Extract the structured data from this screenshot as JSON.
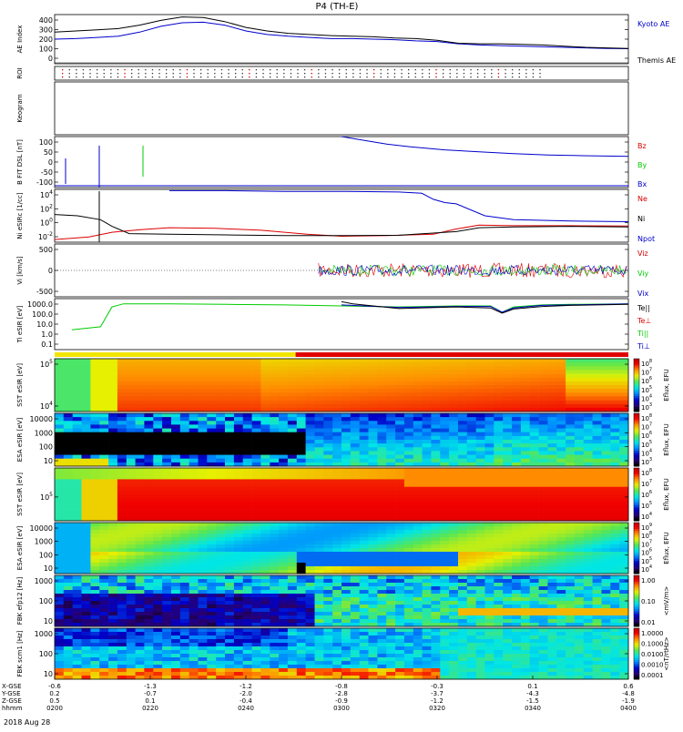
{
  "title": "P4 (TH-E)",
  "date_label": "2018 Aug 28",
  "colors": {
    "red": "#dd0000",
    "green": "#00cc00",
    "blue": "#0000cc",
    "black": "#000000"
  },
  "chart_data": {
    "type": "line",
    "time_axis": {
      "hhmm": [
        "0200",
        "0220",
        "0240",
        "0300",
        "0320",
        "0340",
        "0400"
      ],
      "rows": [
        {
          "label": "X-GSE",
          "values": [
            "-0.6",
            "-1.3",
            "-1.2",
            "-0.8",
            "-0.3",
            "0.1",
            "0.6"
          ]
        },
        {
          "label": "Y-GSE",
          "values": [
            "0.2",
            "-0.7",
            "-2.0",
            "-2.8",
            "-3.7",
            "-4.3",
            "-4.8"
          ]
        },
        {
          "label": "Z-GSE",
          "values": [
            "0.5",
            "0.1",
            "-0.4",
            "-0.9",
            "-1.2",
            "-1.5",
            "-1.9"
          ]
        },
        {
          "label": "hhmm",
          "values": [
            "0200",
            "0220",
            "0240",
            "0300",
            "0320",
            "0340",
            "0400"
          ]
        }
      ]
    },
    "panels": [
      {
        "id": "ae",
        "ylabel": "AE Index",
        "yticks": [
          "400",
          "300",
          "200",
          "100",
          "0"
        ],
        "ylim": [
          0,
          420
        ],
        "legend": [
          {
            "text": "Kyoto AE",
            "color": "blue"
          },
          {
            "text": "Themis AE",
            "color": "black"
          }
        ],
        "series": [
          {
            "name": "Kyoto AE",
            "color": "blue",
            "values": [
              210,
              215,
              225,
              235,
              270,
              320,
              350,
              355,
              330,
              280,
              250,
              235,
              225,
              215,
              215,
              210,
              205,
              195,
              190,
              170,
              160,
              155,
              150,
              145,
              140,
              135,
              130,
              128
            ]
          },
          {
            "name": "Themis AE",
            "color": "black",
            "values": [
              270,
              280,
              290,
              300,
              330,
              370,
              400,
              395,
              360,
              310,
              280,
              260,
              250,
              240,
              235,
              230,
              220,
              215,
              200,
              175,
              170,
              170,
              165,
              160,
              150,
              140,
              135,
              130
            ]
          }
        ]
      },
      {
        "id": "roi",
        "ylabel": "ROI"
      },
      {
        "id": "keogram",
        "ylabel": "Keogram"
      },
      {
        "id": "bfit",
        "ylabel": "B FIT DSL [nT]",
        "yticks": [
          "100",
          "50",
          "0",
          "-50",
          "-100"
        ],
        "ylim": [
          -100,
          100
        ],
        "legend": [
          {
            "text": "Bz",
            "color": "red"
          },
          {
            "text": "By",
            "color": "green"
          },
          {
            "text": "Bx",
            "color": "blue"
          }
        ],
        "series": [
          {
            "name": "Bx",
            "color": "blue",
            "x": [
              0.5,
              0.54,
              0.58,
              0.62,
              0.68,
              0.74,
              0.8,
              0.86,
              0.92,
              1.0
            ],
            "values": [
              100,
              85,
              70,
              60,
              48,
              40,
              33,
              28,
              25,
              22
            ]
          }
        ]
      },
      {
        "id": "ni",
        "ylabel": "Ni eSIRc [1/cc]",
        "yticks": [
          "10^4",
          "10^2",
          "10^0",
          "10^-2"
        ],
        "ylim": [
          -3,
          5
        ],
        "legend": [
          {
            "text": "Ne",
            "color": "red"
          },
          {
            "text": "Ni",
            "color": "black"
          },
          {
            "text": "Npot",
            "color": "blue"
          }
        ],
        "series": [
          {
            "name": "Ne",
            "color": "red",
            "x": [
              0,
              0.06,
              0.1,
              0.15,
              0.2,
              0.28,
              0.36,
              0.44,
              0.5,
              0.58,
              0.66,
              0.7,
              0.74,
              0.8,
              0.9,
              1.0
            ],
            "values": [
              -2.6,
              -2.2,
              -1.5,
              -1.1,
              -0.8,
              -0.9,
              -1.2,
              -1.8,
              -2.1,
              -2.0,
              -1.8,
              -1.0,
              -0.4,
              -0.5,
              -0.5,
              -0.55
            ]
          },
          {
            "name": "Ni",
            "color": "black",
            "x": [
              0,
              0.04,
              0.08,
              0.1,
              0.13,
              0.2,
              0.3,
              0.4,
              0.5,
              0.6,
              0.7,
              0.74,
              0.8,
              0.9,
              1.0
            ],
            "values": [
              1.2,
              1.0,
              0.4,
              -0.6,
              -1.7,
              -1.8,
              -1.9,
              -2.0,
              -2.0,
              -1.95,
              -1.4,
              -0.8,
              -0.7,
              -0.6,
              -0.7
            ]
          },
          {
            "name": "Npot",
            "color": "blue",
            "x": [
              0.2,
              0.3,
              0.4,
              0.5,
              0.6,
              0.64,
              0.66,
              0.68,
              0.7,
              0.75,
              0.8,
              0.9,
              1.0
            ],
            "values": [
              4.8,
              4.8,
              4.7,
              4.7,
              4.6,
              4.4,
              3.5,
              3.0,
              2.8,
              1.0,
              0.4,
              0.2,
              0.1
            ]
          }
        ]
      },
      {
        "id": "vi",
        "ylabel": "Vi [km/s]",
        "yticks": [
          "500",
          "0",
          "-500"
        ],
        "ylim": [
          -800,
          800
        ],
        "legend": [
          {
            "text": "Viz",
            "color": "red"
          },
          {
            "text": "Viy",
            "color": "green"
          },
          {
            "text": "Vix",
            "color": "blue"
          }
        ]
      },
      {
        "id": "ti",
        "ylabel": "Ti eSIR [eV]",
        "yticks": [
          "1000.0",
          "100.0",
          "10.0",
          "1.0",
          "0.1"
        ],
        "ylim": [
          -1.3,
          3.6
        ],
        "legend": [
          {
            "text": "Te||",
            "color": "black"
          },
          {
            "text": "Te⊥",
            "color": "red"
          },
          {
            "text": "Ti||",
            "color": "green"
          },
          {
            "text": "Ti⊥",
            "color": "blue"
          }
        ],
        "series": [
          {
            "name": "Ti||",
            "color": "green",
            "x": [
              0.03,
              0.08,
              0.1,
              0.12,
              0.2,
              0.3,
              0.4,
              0.5,
              0.6,
              0.7,
              0.76,
              0.78,
              0.8,
              0.85,
              0.9,
              1.0
            ],
            "values": [
              0.6,
              0.9,
              2.8,
              3.1,
              3.1,
              3.05,
              3.0,
              2.9,
              2.8,
              2.9,
              2.9,
              2.3,
              2.8,
              3.0,
              3.05,
              3.1
            ]
          },
          {
            "name": "Ti⊥",
            "color": "blue",
            "x": [
              0.5,
              0.6,
              0.7,
              0.76,
              0.78,
              0.8,
              0.85,
              0.9,
              1.0
            ],
            "values": [
              3.0,
              2.75,
              2.85,
              2.85,
              2.3,
              2.7,
              2.95,
              3.0,
              3.1
            ]
          },
          {
            "name": "Te||",
            "color": "black",
            "x": [
              0.5,
              0.52,
              0.6,
              0.7,
              0.76,
              0.78,
              0.8,
              0.85,
              0.9,
              1.0
            ],
            "values": [
              3.3,
              3.1,
              2.65,
              2.8,
              2.7,
              2.2,
              2.6,
              2.85,
              2.95,
              3.05
            ]
          }
        ]
      },
      {
        "id": "sst_i",
        "ylabel": "SST eSIR [eV]",
        "yticks": [
          "10^5",
          "10^4"
        ],
        "cbar": "Eflux, EFU",
        "cbar_ticks": [
          "10^8",
          "10^7",
          "10^6",
          "10^5",
          "10^4",
          "10^3"
        ]
      },
      {
        "id": "esa_i",
        "ylabel": "ESA eSIR [eV]",
        "yticks": [
          "10000",
          "1000",
          "100",
          "10"
        ],
        "cbar": "Eflux, EFU",
        "cbar_ticks": [
          "10^8",
          "10^7",
          "10^6",
          "10^5",
          "10^4",
          "10^3"
        ]
      },
      {
        "id": "sst_e",
        "ylabel": "SST eSIR [eV]",
        "yticks": [
          "10^5"
        ],
        "cbar": "Eflux, EFU",
        "cbar_ticks": [
          "10^8",
          "10^7",
          "10^6",
          "10^5",
          "10^4"
        ]
      },
      {
        "id": "esa_e",
        "ylabel": "ESA eSIR [eV]",
        "yticks": [
          "10000",
          "1000",
          "100",
          "10"
        ],
        "cbar": "Eflux, EFU",
        "cbar_ticks": [
          "10^9",
          "10^8",
          "10^7",
          "10^6",
          "10^5",
          "10^4"
        ]
      },
      {
        "id": "fbk1",
        "ylabel": "FBK efp12 [Hz]",
        "yticks": [
          "1000",
          "100",
          "10"
        ],
        "cbar": "<mV/m>",
        "cbar_ticks": [
          "1.00",
          "0.10",
          "0.01"
        ]
      },
      {
        "id": "fbk2",
        "ylabel": "FBK scm1 [Hz]",
        "yticks": [
          "1000",
          "100",
          "10"
        ],
        "cbar": "<nT/rtHz>",
        "cbar_ticks": [
          "1.0000",
          "0.1000",
          "0.0100",
          "0.0010",
          "0.0001"
        ]
      }
    ]
  }
}
